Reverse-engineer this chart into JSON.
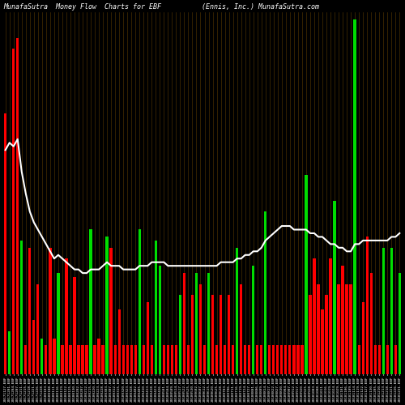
{
  "title": "MunafaSutra  Money Flow  Charts for EBF          (Ennis, Inc.) MunafaSutra.com",
  "background_color": "#000000",
  "bar_color_list": [
    "red",
    "green",
    "red",
    "red",
    "green",
    "red",
    "red",
    "red",
    "red",
    "green",
    "red",
    "red",
    "red",
    "green",
    "red",
    "red",
    "red",
    "red",
    "red",
    "red",
    "red",
    "green",
    "red",
    "red",
    "red",
    "green",
    "red",
    "red",
    "red",
    "red",
    "red",
    "red",
    "red",
    "green",
    "red",
    "red",
    "red",
    "green",
    "green",
    "red",
    "red",
    "red",
    "red",
    "green",
    "red",
    "red",
    "red",
    "green",
    "red",
    "red",
    "green",
    "red",
    "red",
    "red",
    "red",
    "red",
    "red",
    "green",
    "red",
    "red",
    "red",
    "green",
    "red",
    "red",
    "green",
    "red",
    "red",
    "red",
    "red",
    "red",
    "red",
    "red",
    "red",
    "red",
    "green",
    "red",
    "red",
    "red",
    "red",
    "red",
    "red",
    "green",
    "red",
    "red",
    "red",
    "red",
    "green",
    "red",
    "red",
    "red",
    "red",
    "red",
    "red",
    "green",
    "red",
    "green",
    "red",
    "green"
  ],
  "bar_heights": [
    0.72,
    0.12,
    0.9,
    0.93,
    0.37,
    0.08,
    0.35,
    0.15,
    0.25,
    0.1,
    0.08,
    0.35,
    0.1,
    0.28,
    0.08,
    0.32,
    0.08,
    0.27,
    0.08,
    0.08,
    0.08,
    0.4,
    0.08,
    0.1,
    0.08,
    0.38,
    0.35,
    0.08,
    0.18,
    0.08,
    0.08,
    0.08,
    0.08,
    0.4,
    0.08,
    0.2,
    0.08,
    0.37,
    0.3,
    0.08,
    0.08,
    0.08,
    0.08,
    0.22,
    0.28,
    0.08,
    0.22,
    0.28,
    0.25,
    0.08,
    0.28,
    0.22,
    0.08,
    0.22,
    0.08,
    0.22,
    0.08,
    0.35,
    0.25,
    0.08,
    0.08,
    0.3,
    0.08,
    0.08,
    0.45,
    0.08,
    0.08,
    0.08,
    0.08,
    0.08,
    0.08,
    0.08,
    0.08,
    0.08,
    0.55,
    0.22,
    0.32,
    0.25,
    0.18,
    0.22,
    0.32,
    0.48,
    0.25,
    0.3,
    0.25,
    0.25,
    0.98,
    0.08,
    0.2,
    0.38,
    0.28,
    0.08,
    0.08,
    0.35,
    0.08,
    0.35,
    0.08,
    0.28
  ],
  "line_color": "#ffffff",
  "title_color": "#ffffff",
  "title_fontsize": 6,
  "xlabel_fontsize": 3.2,
  "grid_color": "#5a3a00",
  "dates": [
    "20171127-EBF",
    "20171201-EBF",
    "20171204-EBF",
    "20171207-EBF",
    "20171211-EBF",
    "20171215-EBF",
    "20171218-EBF",
    "20171221-EBF",
    "20171226-EBF",
    "20171228-EBF",
    "20180103-EBF",
    "20180108-EBF",
    "20180111-EBF",
    "20180116-EBF",
    "20180119-EBF",
    "20180122-EBF",
    "20180125-EBF",
    "20180130-EBF",
    "20180202-EBF",
    "20180207-EBF",
    "20180212-EBF",
    "20180215-EBF",
    "20180220-EBF",
    "20180223-EBF",
    "20180228-EBF",
    "20180303-EBF",
    "20180307-EBF",
    "20180312-EBF",
    "20180315-EBF",
    "20180320-EBF",
    "20180323-EBF",
    "20180328-EBF",
    "20180402-EBF",
    "20180405-EBF",
    "20180410-EBF",
    "20180413-EBF",
    "20180418-EBF",
    "20180423-EBF",
    "20180426-EBF",
    "20180501-EBF",
    "20180504-EBF",
    "20180509-EBF",
    "20180514-EBF",
    "20180517-EBF",
    "20180522-EBF",
    "20180525-EBF",
    "20180530-EBF",
    "20180602-EBF",
    "20180607-EBF",
    "20180612-EBF",
    "20180615-EBF",
    "20180620-EBF",
    "20180625-EBF",
    "20180628-EBF",
    "20180703-EBF",
    "20180706-EBF",
    "20180711-EBF",
    "20180716-EBF",
    "20180719-EBF",
    "20180724-EBF",
    "20180727-EBF",
    "20180801-EBF",
    "20180806-EBF",
    "20180809-EBF",
    "20180814-EBF",
    "20180817-EBF",
    "20180822-EBF",
    "20180827-EBF",
    "20180830-EBF",
    "20180904-EBF",
    "20180907-EBF",
    "20180912-EBF",
    "20180917-EBF",
    "20180920-EBF",
    "20180925-EBF",
    "20180928-EBF",
    "20181003-EBF",
    "20181008-EBF",
    "20181011-EBF",
    "20181016-EBF",
    "20181019-EBF",
    "20181024-EBF",
    "20181029-EBF",
    "20181101-EBF",
    "20181106-EBF",
    "20181109-EBF",
    "20181114-EBF",
    "20181119-EBF",
    "20181122-EBF",
    "20181127-EBF",
    "20181130-EBF",
    "20181205-EBF",
    "20181210-EBF",
    "20181213-EBF",
    "20181218-EBF",
    "20181221-EBF",
    "20181226-EBF",
    "20181231-EBF"
  ],
  "ma_line": [
    0.62,
    0.64,
    0.63,
    0.65,
    0.56,
    0.5,
    0.45,
    0.42,
    0.4,
    0.38,
    0.36,
    0.34,
    0.32,
    0.33,
    0.32,
    0.31,
    0.3,
    0.29,
    0.29,
    0.28,
    0.28,
    0.29,
    0.29,
    0.29,
    0.3,
    0.31,
    0.3,
    0.3,
    0.3,
    0.29,
    0.29,
    0.29,
    0.29,
    0.3,
    0.3,
    0.3,
    0.31,
    0.31,
    0.31,
    0.31,
    0.3,
    0.3,
    0.3,
    0.3,
    0.3,
    0.3,
    0.3,
    0.3,
    0.3,
    0.3,
    0.3,
    0.3,
    0.3,
    0.31,
    0.31,
    0.31,
    0.31,
    0.32,
    0.32,
    0.33,
    0.33,
    0.34,
    0.34,
    0.35,
    0.37,
    0.38,
    0.39,
    0.4,
    0.41,
    0.41,
    0.41,
    0.4,
    0.4,
    0.4,
    0.4,
    0.39,
    0.39,
    0.38,
    0.38,
    0.37,
    0.36,
    0.36,
    0.35,
    0.35,
    0.34,
    0.34,
    0.36,
    0.36,
    0.37,
    0.37,
    0.37,
    0.37,
    0.37,
    0.37,
    0.37,
    0.38,
    0.38,
    0.39
  ],
  "ylim": [
    0,
    1.0
  ],
  "bar_width": 0.65
}
